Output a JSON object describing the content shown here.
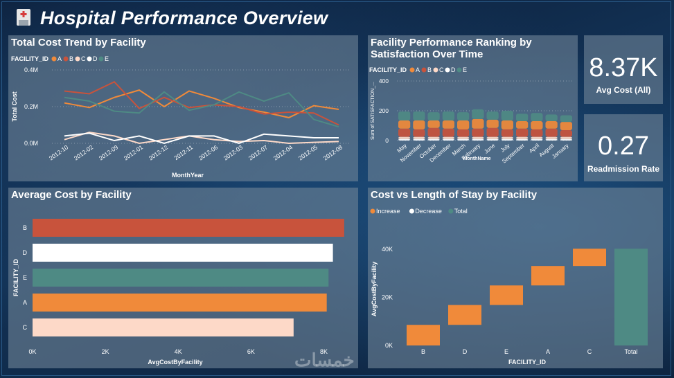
{
  "header": {
    "title": "Hospital Performance Overview",
    "logo_icon": "hospital-icon"
  },
  "colors": {
    "A": "#f08a3a",
    "B": "#c8533c",
    "C": "#fdd9c8",
    "D": "#ffffff",
    "E": "#4e8a84"
  },
  "line_panel": {
    "title": "Total Cost Trend by Facility",
    "legend_title": "FACILITY_ID",
    "legend": [
      "A",
      "B",
      "C",
      "D",
      "E"
    ]
  },
  "rank_panel": {
    "title_line1": "Facility Performance Ranking by",
    "title_line2": "Satisfaction Over Time",
    "legend_title": "FACILITY_ID",
    "legend": [
      "A",
      "B",
      "C",
      "D",
      "E"
    ]
  },
  "kpi_cost": {
    "value": "8.37K",
    "label": "Avg Cost (All)"
  },
  "kpi_readmit": {
    "value": "0.27",
    "label": "Readmission Rate"
  },
  "bar_panel": {
    "title": "Average Cost by Facility"
  },
  "waterfall_panel": {
    "title": "Cost vs Length of Stay by Facility",
    "legend": [
      "Increase",
      "Decrease",
      "Total"
    ]
  },
  "watermark": "خمسات",
  "chart_data": [
    {
      "type": "line",
      "title": "Total Cost Trend by Facility",
      "xlabel": "MonthYear",
      "ylabel": "Total Cost",
      "ylim": [
        0,
        400000
      ],
      "yticks": [
        0,
        200000,
        400000
      ],
      "ytick_labels": [
        "0.0M",
        "0.2M",
        "0.4M"
      ],
      "x": [
        "2012-10",
        "2012-02",
        "2012-09",
        "2012-01",
        "2012-12",
        "2012-11",
        "2012-06",
        "2012-03",
        "2012-07",
        "2012-04",
        "2012-05",
        "2012-08"
      ],
      "x_display": [
        "2012-10",
        "2012-02",
        "2012-09",
        "2012-01",
        "2012-12",
        "2012-11",
        "2012-06",
        "2012-03",
        "2012-07",
        "2012-04",
        "2012-05",
        "2012-08"
      ],
      "series": [
        {
          "name": "A",
          "values": [
            220000,
            195000,
            250000,
            290000,
            200000,
            285000,
            245000,
            195000,
            170000,
            140000,
            205000,
            185000
          ]
        },
        {
          "name": "B",
          "values": [
            285000,
            270000,
            335000,
            190000,
            250000,
            195000,
            210000,
            200000,
            160000,
            170000,
            165000,
            100000
          ]
        },
        {
          "name": "C",
          "values": [
            20000,
            60000,
            40000,
            0,
            20000,
            40000,
            20000,
            10000,
            15000,
            0,
            5000,
            10000
          ]
        },
        {
          "name": "D",
          "values": [
            40000,
            55000,
            15000,
            40000,
            0,
            40000,
            40000,
            0,
            50000,
            40000,
            30000,
            30000
          ]
        },
        {
          "name": "E",
          "values": [
            250000,
            230000,
            175000,
            165000,
            280000,
            180000,
            210000,
            280000,
            230000,
            275000,
            130000,
            90000
          ]
        }
      ]
    },
    {
      "type": "area",
      "title": "Facility Performance Ranking by Satisfaction Over Time",
      "xlabel": "MonthName",
      "ylabel": "Sum of SATISFACTION_...",
      "ylim": [
        0,
        400
      ],
      "yticks": [
        0,
        200,
        400
      ],
      "categories": [
        "May",
        "November",
        "October",
        "December",
        "March",
        "February",
        "June",
        "July",
        "September",
        "April",
        "August",
        "January"
      ],
      "series": [
        {
          "name": "A",
          "values": [
            55,
            60,
            50,
            55,
            60,
            65,
            55,
            60,
            50,
            55,
            50,
            55
          ]
        },
        {
          "name": "B",
          "values": [
            55,
            50,
            60,
            55,
            50,
            55,
            60,
            50,
            55,
            50,
            55,
            45
          ]
        },
        {
          "name": "C",
          "values": [
            15,
            15,
            15,
            15,
            15,
            15,
            15,
            15,
            15,
            15,
            15,
            15
          ]
        },
        {
          "name": "D",
          "values": [
            10,
            10,
            10,
            10,
            10,
            10,
            10,
            10,
            10,
            10,
            10,
            10
          ]
        },
        {
          "name": "E",
          "values": [
            60,
            60,
            55,
            60,
            55,
            65,
            55,
            65,
            50,
            55,
            45,
            45
          ]
        }
      ]
    },
    {
      "type": "bar",
      "orientation": "horizontal",
      "title": "Average Cost by Facility",
      "xlabel": "AvgCostByFacility",
      "ylabel": "FACILITY_ID",
      "xlim": [
        0,
        8600
      ],
      "xticks": [
        0,
        2000,
        4000,
        6000,
        8000
      ],
      "xtick_labels": [
        "0K",
        "2K",
        "4K",
        "6K",
        "8K"
      ],
      "categories": [
        "B",
        "D",
        "E",
        "A",
        "C"
      ],
      "values": [
        8560,
        8250,
        8130,
        8080,
        7170
      ]
    },
    {
      "type": "bar",
      "subtype": "waterfall",
      "title": "Cost vs Length of Stay by Facility",
      "xlabel": "FACILITY_ID",
      "ylabel": "AvgCostByFacility",
      "ylim": [
        0,
        44000
      ],
      "yticks": [
        0,
        20000,
        40000
      ],
      "ytick_labels": [
        "0K",
        "20K",
        "40K"
      ],
      "categories": [
        "B",
        "D",
        "E",
        "A",
        "C",
        "Total"
      ],
      "values": [
        8560,
        8250,
        8130,
        8080,
        7170,
        40190
      ],
      "kinds": [
        "Increase",
        "Increase",
        "Increase",
        "Increase",
        "Increase",
        "Total"
      ]
    }
  ]
}
